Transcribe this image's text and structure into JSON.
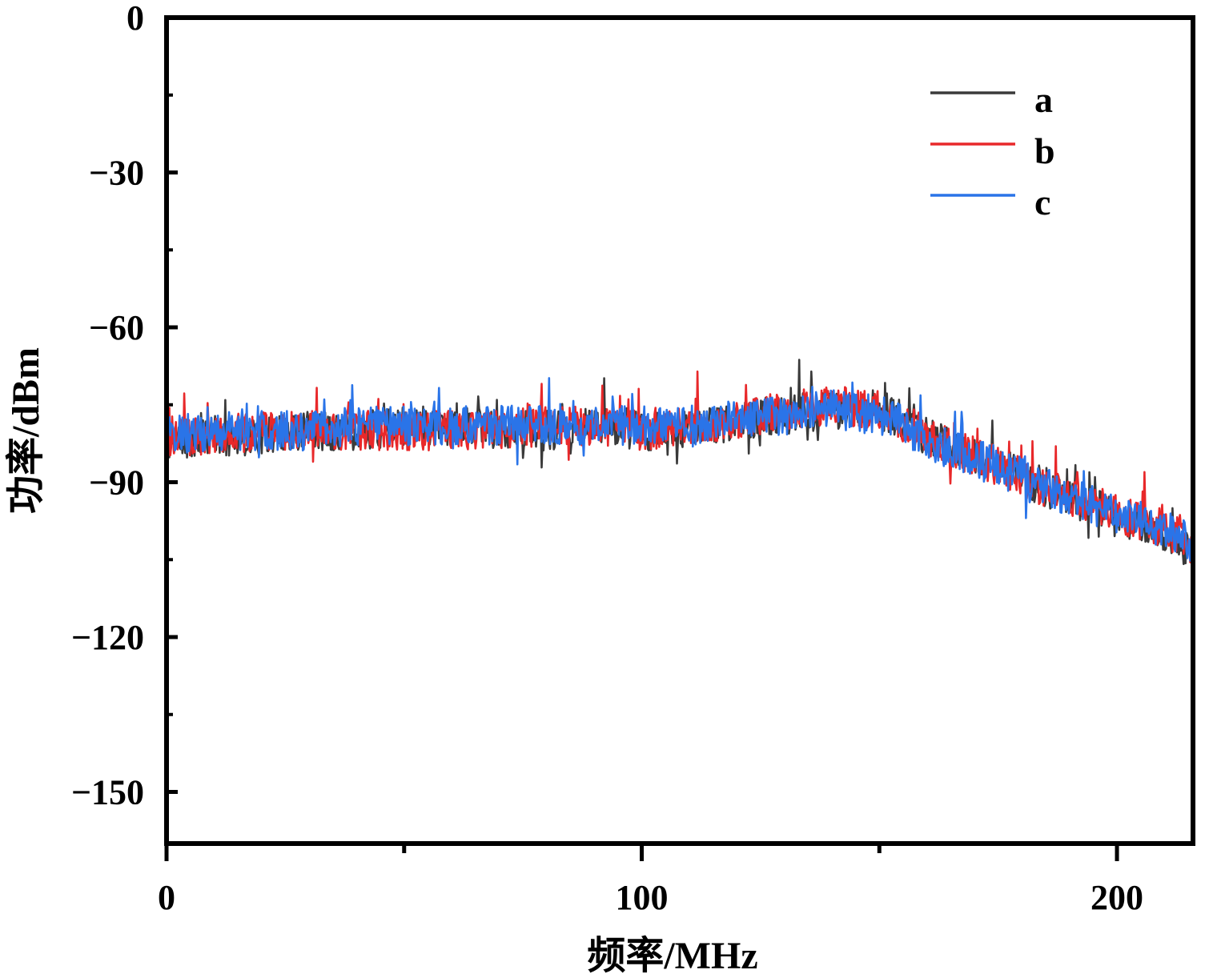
{
  "chart_data": {
    "type": "line",
    "title": "",
    "xlabel": "频率/MHz",
    "ylabel": "功率/dBm",
    "xlim": [
      0,
      216
    ],
    "ylim": [
      -160,
      0
    ],
    "xticks": [
      0,
      100,
      200
    ],
    "xtick_labels": [
      "0",
      "100",
      "200"
    ],
    "yticks": [
      0,
      -30,
      -60,
      -90,
      -120,
      -150
    ],
    "ytick_labels": [
      "0",
      "−30",
      "−60",
      "−90",
      "−120",
      "−150"
    ],
    "grid": false,
    "legend_position": "top-right",
    "x": [
      0,
      10,
      20,
      30,
      40,
      50,
      60,
      70,
      80,
      90,
      100,
      110,
      120,
      130,
      140,
      150,
      155,
      160,
      170,
      180,
      190,
      200,
      210,
      216
    ],
    "series": [
      {
        "name": "a",
        "color": "#3a3a3a",
        "noise": 7,
        "seed": 11,
        "values": [
          -82,
          -81,
          -81,
          -80,
          -80,
          -79,
          -79,
          -80,
          -80,
          -79,
          -80,
          -80,
          -78,
          -77,
          -76,
          -76,
          -78,
          -81,
          -85,
          -89,
          -93,
          -97,
          -100,
          -103
        ]
      },
      {
        "name": "b",
        "color": "#e8282a",
        "noise": 7,
        "seed": 23,
        "values": [
          -81,
          -81,
          -80,
          -80,
          -80,
          -80,
          -80,
          -80,
          -79,
          -79,
          -80,
          -79,
          -78,
          -76,
          -75,
          -76,
          -78,
          -81,
          -85,
          -89,
          -93,
          -96,
          -99,
          -102
        ]
      },
      {
        "name": "c",
        "color": "#2a74e8",
        "noise": 7,
        "seed": 37,
        "values": [
          -81,
          -80,
          -80,
          -80,
          -79,
          -79,
          -79,
          -79,
          -79,
          -79,
          -79,
          -79,
          -78,
          -77,
          -76,
          -77,
          -79,
          -82,
          -85,
          -89,
          -93,
          -96,
          -99,
          -102
        ]
      }
    ]
  }
}
